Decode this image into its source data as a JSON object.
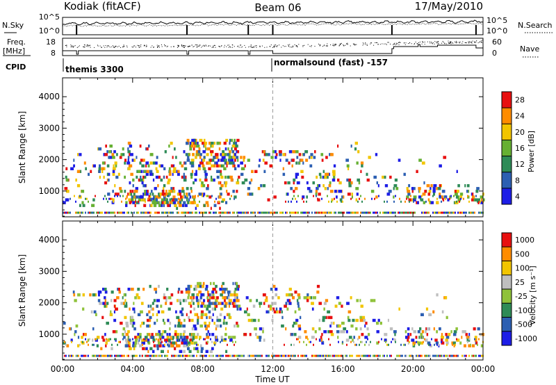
{
  "header": {
    "title_left": "Kodiak (fitACF)",
    "title_center": "Beam 06",
    "title_right": "17/May/2010"
  },
  "top_panels": {
    "nsky_label": "N.Sky",
    "nsky_scale_left": [
      "10^5",
      "10^0"
    ],
    "nsearch_label": "N.Search",
    "nsearch_scale_right": [
      "10^5",
      "10^0"
    ],
    "freq_label_1": "Freq.",
    "freq_label_2": "[MHz]",
    "freq_ticks": [
      "18",
      "8"
    ],
    "nave_label": "Nave",
    "nave_ticks": [
      "60",
      "0"
    ],
    "cpid_label": "CPID",
    "cpid_segments": [
      {
        "label": "themis 3300",
        "start_hour": 0
      },
      {
        "label": "normalsound (fast) -157",
        "start_hour": 12
      }
    ]
  },
  "chart_data": [
    {
      "type": "heatmap",
      "name": "power",
      "ylabel": "Slant Range [km]",
      "yticks": [
        1000,
        2000,
        3000,
        4000
      ],
      "ylim": [
        180,
        4600
      ],
      "xlim": [
        0,
        24
      ],
      "colorbar_label": "Power [dB]",
      "colorbar_ticks": [
        "4",
        "8",
        "12",
        "16",
        "20",
        "24",
        "28"
      ],
      "colorbar_colors": [
        "#1d1de6",
        "#2c5fb2",
        "#2e8b57",
        "#66b032",
        "#f2c500",
        "#ff8c00",
        "#e81010"
      ]
    },
    {
      "type": "heatmap",
      "name": "velocity",
      "ylabel": "Slant Range [km]",
      "yticks": [
        1000,
        2000,
        3000,
        4000
      ],
      "ylim": [
        180,
        4600
      ],
      "xlim": [
        0,
        24
      ],
      "xlabel": "Time UT",
      "xtick_labels": [
        "00:00",
        "04:00",
        "08:00",
        "12:00",
        "16:00",
        "20:00",
        "00:00"
      ],
      "colorbar_label": "Velocity [m s⁻¹]",
      "colorbar_ticks": [
        "1000",
        "500",
        "100",
        "25",
        "-25",
        "-100",
        "-500",
        "-1000"
      ],
      "colorbar_colors": [
        "#1d1de6",
        "#2c5fb2",
        "#2e8b57",
        "#8fc23a",
        "#bfbfbf",
        "#f2c500",
        "#ff8c00",
        "#e81010"
      ]
    }
  ]
}
